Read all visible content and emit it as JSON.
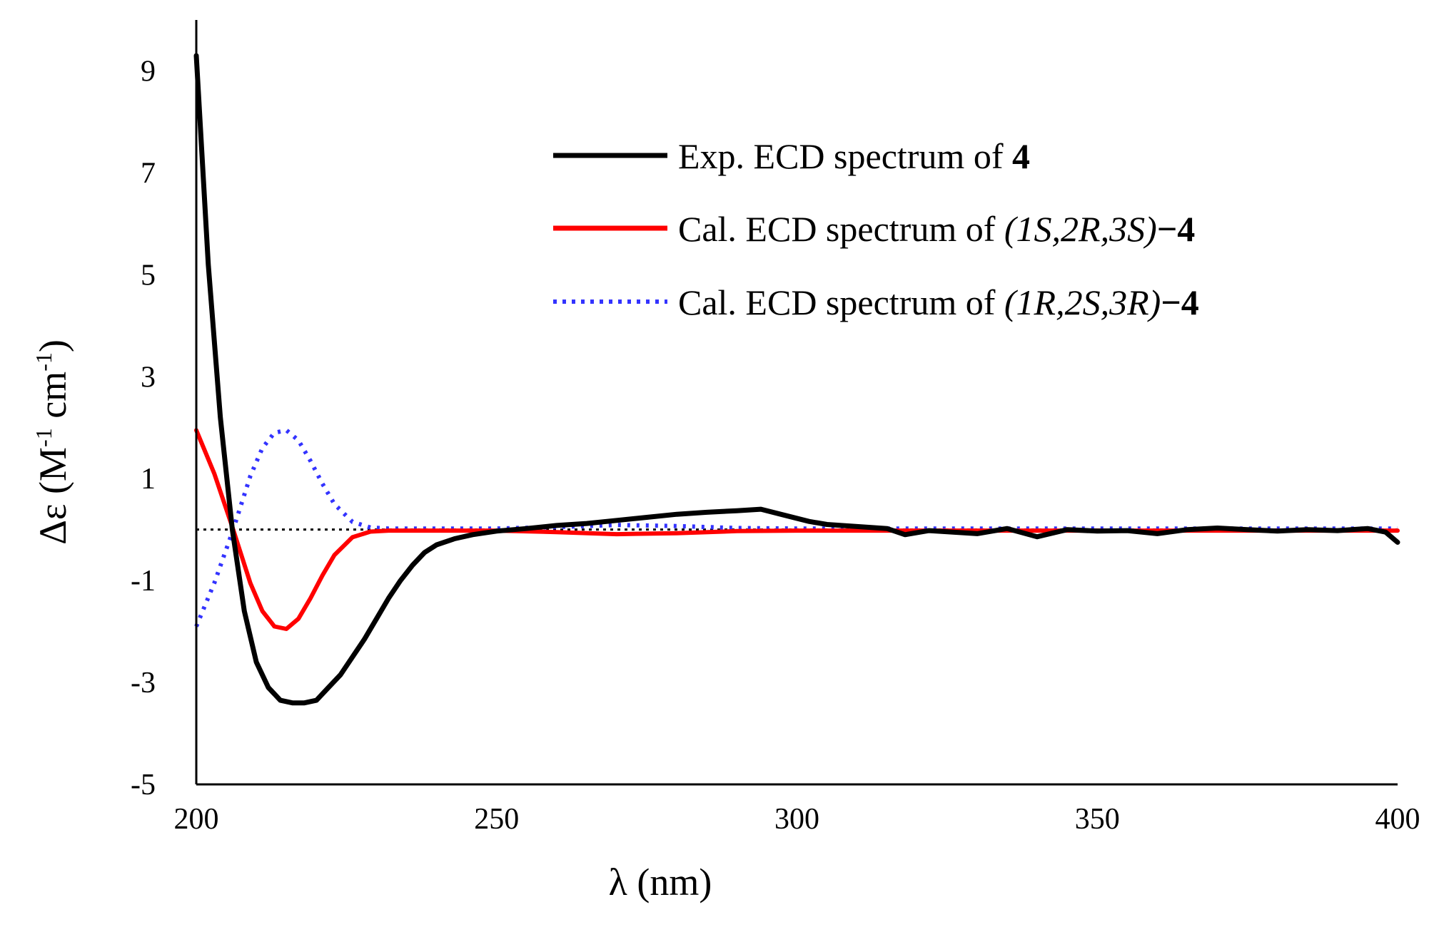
{
  "chart_data": {
    "type": "line",
    "title": "",
    "xlabel": "λ (nm)",
    "ylabel_prefix": "Δε (M",
    "ylabel_sup1": "-1",
    "ylabel_mid": " cm",
    "ylabel_sup2": "-1",
    "ylabel_suffix": ")",
    "xlim": [
      200,
      400
    ],
    "ylim": [
      -5,
      10
    ],
    "x_ticks": [
      200,
      250,
      300,
      350,
      400
    ],
    "y_ticks": [
      -5,
      -3,
      -1,
      1,
      3,
      5,
      7,
      9
    ],
    "reference_line": {
      "y": 0,
      "style": "dotted",
      "color": "#000000"
    },
    "legend_position": "top-right",
    "series": [
      {
        "name": "Exp. ECD spectrum of 4",
        "legend_plain": "Exp. ECD spectrum of ",
        "legend_compound": "4",
        "color": "#000000",
        "style": "solid",
        "x": [
          200,
          202,
          204,
          206,
          208,
          210,
          212,
          214,
          216,
          218,
          220,
          222,
          224,
          226,
          228,
          230,
          232,
          234,
          236,
          238,
          240,
          243,
          246,
          250,
          255,
          260,
          265,
          270,
          275,
          280,
          285,
          290,
          294,
          298,
          302,
          305,
          310,
          315,
          318,
          322,
          330,
          335,
          340,
          345,
          350,
          355,
          360,
          365,
          370,
          375,
          380,
          385,
          390,
          395,
          398,
          400
        ],
        "y": [
          9.3,
          5.2,
          2.2,
          0.0,
          -1.6,
          -2.6,
          -3.1,
          -3.35,
          -3.4,
          -3.4,
          -3.35,
          -3.1,
          -2.85,
          -2.5,
          -2.15,
          -1.75,
          -1.35,
          -1.0,
          -0.7,
          -0.45,
          -0.3,
          -0.18,
          -0.1,
          -0.03,
          0.02,
          0.08,
          0.12,
          0.18,
          0.24,
          0.3,
          0.34,
          0.37,
          0.4,
          0.28,
          0.16,
          0.1,
          0.06,
          0.02,
          -0.1,
          -0.02,
          -0.08,
          0.02,
          -0.14,
          0.0,
          -0.03,
          -0.02,
          -0.08,
          0.0,
          0.03,
          0.0,
          -0.03,
          0.0,
          -0.02,
          0.02,
          -0.05,
          -0.25
        ]
      },
      {
        "name": "Cal. ECD spectrum of (1S,2R,3S)−4",
        "legend_plain": "Cal. ECD spectrum of ",
        "legend_config": "(1S,2R,3S)",
        "legend_compound": "−4",
        "color": "#ff0000",
        "style": "solid",
        "x": [
          200,
          203,
          206,
          209,
          211,
          213,
          215,
          217,
          219,
          221,
          223,
          226,
          229,
          232,
          236,
          240,
          250,
          260,
          270,
          280,
          290,
          300,
          320,
          340,
          360,
          380,
          400
        ],
        "y": [
          1.95,
          1.1,
          0.05,
          -1.05,
          -1.6,
          -1.9,
          -1.95,
          -1.75,
          -1.35,
          -0.9,
          -0.5,
          -0.15,
          -0.04,
          -0.02,
          -0.02,
          -0.02,
          -0.02,
          -0.05,
          -0.09,
          -0.07,
          -0.03,
          -0.02,
          -0.02,
          -0.02,
          -0.02,
          -0.02,
          -0.02
        ]
      },
      {
        "name": "Cal. ECD spectrum of (1R,2S,3R)−4",
        "legend_plain": "Cal. ECD spectrum of ",
        "legend_config": "(1R,2S,3R)",
        "legend_compound": "−4",
        "color": "#3333ff",
        "style": "dotted",
        "x": [
          200,
          203,
          206,
          209,
          211,
          213,
          215,
          217,
          219,
          221,
          223,
          226,
          229,
          232,
          236,
          240,
          250,
          260,
          270,
          280,
          290,
          300,
          320,
          340,
          360,
          380,
          400
        ],
        "y": [
          -1.9,
          -1.05,
          -0.05,
          1.05,
          1.6,
          1.9,
          1.95,
          1.75,
          1.35,
          0.9,
          0.5,
          0.15,
          0.04,
          0.02,
          0.02,
          0.02,
          0.02,
          0.05,
          0.09,
          0.07,
          0.03,
          0.02,
          0.02,
          0.02,
          0.02,
          0.02,
          0.02
        ]
      }
    ]
  }
}
